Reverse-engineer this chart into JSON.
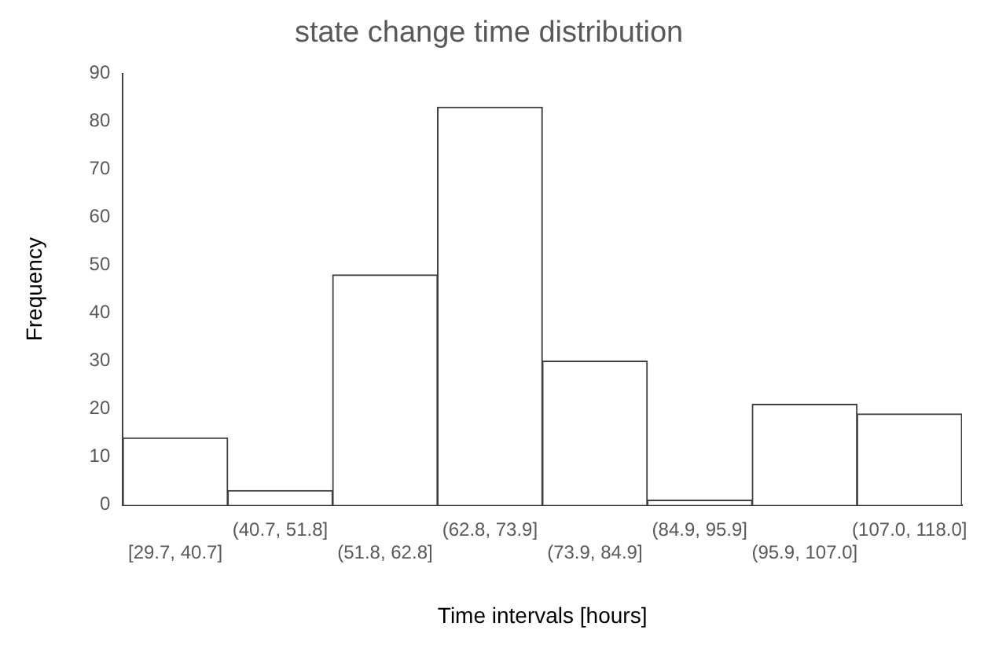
{
  "chart_data": {
    "type": "bar",
    "title": "state change time distribution",
    "xlabel": "Time intervals [hours]",
    "ylabel": "Frequency",
    "categories": [
      "[29.7, 40.7]",
      "(40.7, 51.8]",
      "(51.8, 62.8]",
      "(62.8, 73.9]",
      "(73.9, 84.9]",
      "(84.9, 95.9]",
      "(95.9, 107.0]",
      "(107.0, 118.0]"
    ],
    "values": [
      14,
      3,
      48,
      83,
      30,
      1,
      21,
      19
    ],
    "color": "#ffffff",
    "ylim": [
      0,
      90
    ],
    "yticks": [
      0,
      10,
      20,
      30,
      40,
      50,
      60,
      70,
      80,
      90
    ],
    "grid": false,
    "legend": false
  }
}
